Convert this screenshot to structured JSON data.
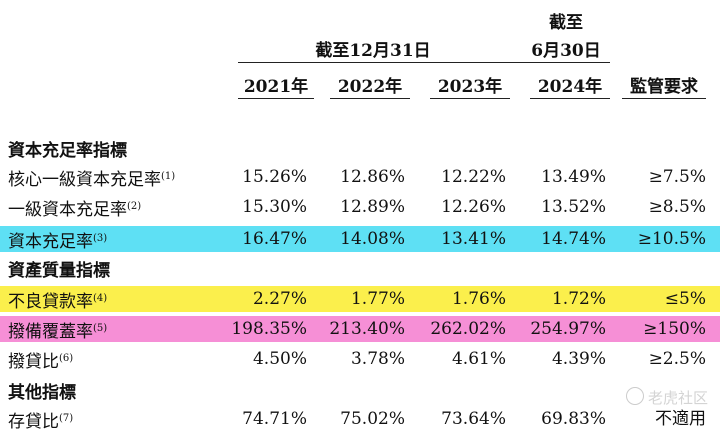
{
  "header": {
    "period_dec": "截至12月31日",
    "period_jun_line1": "截至",
    "period_jun_line2": "6月30日",
    "years": [
      "2021年",
      "2022年",
      "2023年",
      "2024年"
    ],
    "regulatory": "監管要求"
  },
  "sections": {
    "capital": "資本充足率指標",
    "asset_quality": "資產質量指標",
    "other": "其他指標"
  },
  "rows": {
    "core_tier1": {
      "label": "核心一級資本充足率",
      "note": "(1)",
      "values": [
        "15.26%",
        "12.86%",
        "12.22%",
        "13.49%"
      ],
      "req": "≥7.5%"
    },
    "tier1": {
      "label": "一級資本充足率",
      "note": "(2)",
      "values": [
        "15.30%",
        "12.89%",
        "12.26%",
        "13.52%"
      ],
      "req": "≥8.5%"
    },
    "car": {
      "label": "資本充足率",
      "note": "(3)",
      "values": [
        "16.47%",
        "14.08%",
        "13.41%",
        "14.74%"
      ],
      "req": "≥10.5%"
    },
    "npl": {
      "label": "不良貸款率",
      "note": "(4)",
      "values": [
        "2.27%",
        "1.77%",
        "1.76%",
        "1.72%"
      ],
      "req": "≤5%"
    },
    "coverage": {
      "label": "撥備覆蓋率",
      "note": "(5)",
      "values": [
        "198.35%",
        "213.40%",
        "262.02%",
        "254.97%"
      ],
      "req": "≥150%"
    },
    "provision": {
      "label": "撥貸比",
      "note": "(6)",
      "values": [
        "4.50%",
        "3.78%",
        "4.61%",
        "4.39%"
      ],
      "req": "≥2.5%"
    },
    "ldr": {
      "label": "存貸比",
      "note": "(7)",
      "values": [
        "74.71%",
        "75.02%",
        "73.64%",
        "69.83%"
      ],
      "req": "不適用"
    }
  },
  "highlight_colors": {
    "cyan": "#5ee0f4",
    "yellow": "#fbef4c",
    "pink": "#f68fd6"
  },
  "watermark": {
    "icon": "chat-bubble-icon",
    "text": "老虎社区"
  }
}
